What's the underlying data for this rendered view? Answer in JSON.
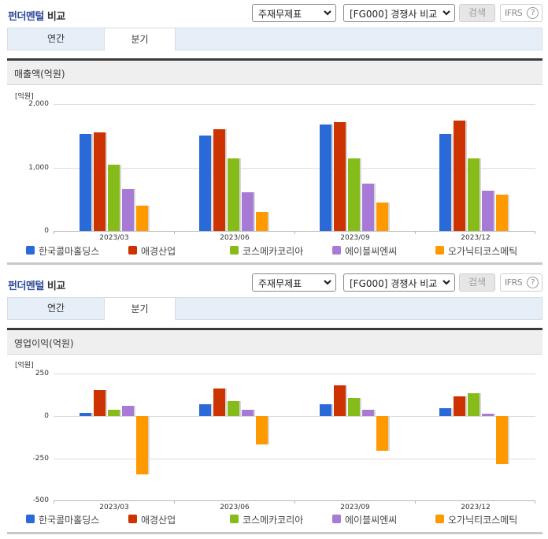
{
  "sections": [
    {
      "title_blue": "펀더멘털",
      "title_rest": " 비교",
      "select_statement": "주재무제표",
      "select_compare": "[FG000] 경쟁사 비교",
      "search_button": "검색",
      "ifrs_button": "IFRS",
      "help_glyph": "?",
      "tabs": [
        {
          "label": "연간",
          "active": false
        },
        {
          "label": "분기",
          "active": true
        }
      ],
      "subheader": "매출액(억원)"
    },
    {
      "title_blue": "펀더멘털",
      "title_rest": " 비교",
      "select_statement": "주재무제표",
      "select_compare": "[FG000] 경쟁사 비교",
      "search_button": "검색",
      "ifrs_button": "IFRS",
      "help_glyph": "?",
      "tabs": [
        {
          "label": "연간",
          "active": false
        },
        {
          "label": "분기",
          "active": true
        }
      ],
      "subheader": "영업이익(억원)"
    }
  ],
  "legend": [
    {
      "name": "한국콜마홀딩스",
      "color": "#2a6ad8"
    },
    {
      "name": "애경산업",
      "color": "#cc3300"
    },
    {
      "name": "코스메카코리아",
      "color": "#86bc1a"
    },
    {
      "name": "에이블씨엔씨",
      "color": "#a77ad6"
    },
    {
      "name": "오가닉티코스메틱",
      "color": "#ff9900"
    }
  ],
  "chart_data": [
    {
      "type": "bar",
      "title": "매출액(억원)",
      "unit_label": "[억원]",
      "xlabel": "",
      "ylabel": "억원",
      "categories": [
        "2023/03",
        "2023/06",
        "2023/09",
        "2023/12"
      ],
      "yticks": [
        "2,000",
        "1,000",
        "0"
      ],
      "ylim": [
        0,
        2000
      ],
      "grid": true,
      "legend_position": "bottom",
      "series": [
        {
          "name": "한국콜마홀딩스",
          "color": "#2a6ad8",
          "values": [
            1528,
            1500,
            1680,
            1530
          ]
        },
        {
          "name": "애경산업",
          "color": "#cc3300",
          "values": [
            1550,
            1600,
            1710,
            1740
          ]
        },
        {
          "name": "코스메카코리아",
          "color": "#86bc1a",
          "values": [
            1045,
            1145,
            1140,
            1145
          ]
        },
        {
          "name": "에이블씨엔씨",
          "color": "#a77ad6",
          "values": [
            660,
            610,
            740,
            635
          ]
        },
        {
          "name": "오가닉티코스메틱",
          "color": "#ff9900",
          "values": [
            400,
            300,
            450,
            570
          ]
        }
      ]
    },
    {
      "type": "bar",
      "title": "영업이익(억원)",
      "unit_label": "[억원]",
      "xlabel": "",
      "ylabel": "억원",
      "categories": [
        "2023/03",
        "2023/06",
        "2023/09",
        "2023/12"
      ],
      "yticks": [
        "250",
        "0",
        "-250",
        "-500"
      ],
      "ylim": [
        -500,
        250
      ],
      "grid": true,
      "legend_position": "bottom",
      "series": [
        {
          "name": "한국콜마홀딩스",
          "color": "#2a6ad8",
          "values": [
            15,
            68,
            68,
            45
          ]
        },
        {
          "name": "애경산업",
          "color": "#cc3300",
          "values": [
            150,
            160,
            179,
            113
          ]
        },
        {
          "name": "코스메카코리아",
          "color": "#86bc1a",
          "values": [
            35,
            85,
            105,
            134
          ]
        },
        {
          "name": "에이블씨엔씨",
          "color": "#a77ad6",
          "values": [
            57,
            35,
            35,
            11
          ]
        },
        {
          "name": "오가닉티코스메틱",
          "color": "#ff9900",
          "values": [
            -347,
            -167,
            -207,
            -284
          ]
        }
      ]
    }
  ]
}
